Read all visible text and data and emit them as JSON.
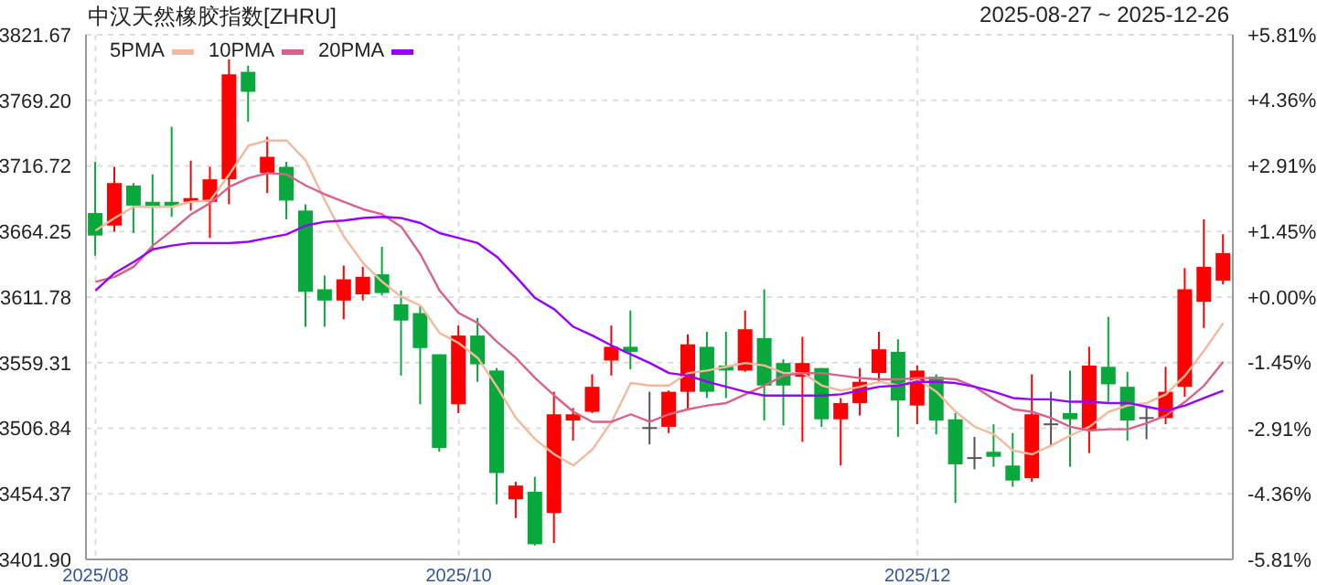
{
  "chart_data": {
    "type": "candlestick",
    "title": "中汉天然橡胶指数[ZHRU]",
    "subtitle": "2025-08-27 ~ 2025-12-26",
    "categories": [
      "2025/08",
      null,
      null,
      null,
      null,
      null,
      null,
      null,
      null,
      null,
      null,
      null,
      null,
      null,
      null,
      null,
      null,
      null,
      null,
      "2025/10",
      null,
      null,
      null,
      null,
      null,
      null,
      null,
      null,
      null,
      null,
      null,
      null,
      null,
      null,
      null,
      null,
      null,
      null,
      null,
      null,
      null,
      null,
      null,
      "2025/12",
      null,
      null,
      null,
      null,
      null,
      null,
      null,
      null,
      null,
      null,
      null,
      null,
      null,
      null,
      null,
      null
    ],
    "ohlc": [
      [
        3679,
        3720,
        3645,
        3661
      ],
      [
        3669,
        3716,
        3664,
        3703
      ],
      [
        3701,
        3703,
        3663,
        3685
      ],
      [
        3688,
        3710,
        3650,
        3684
      ],
      [
        3688,
        3748,
        3676,
        3685
      ],
      [
        3688,
        3721,
        3681,
        3691
      ],
      [
        3688,
        3716,
        3659,
        3706
      ],
      [
        3706,
        3802,
        3686,
        3790
      ],
      [
        3792,
        3797,
        3752,
        3776
      ],
      [
        3711,
        3740,
        3695,
        3724
      ],
      [
        3716,
        3720,
        3674,
        3689
      ],
      [
        3681,
        3686,
        3588,
        3616
      ],
      [
        3618,
        3629,
        3588,
        3609
      ],
      [
        3609,
        3637,
        3594,
        3626
      ],
      [
        3614,
        3636,
        3609,
        3628
      ],
      [
        3630,
        3652,
        3613,
        3615
      ],
      [
        3606,
        3617,
        3549,
        3593
      ],
      [
        3599,
        3605,
        3526,
        3571
      ],
      [
        3566,
        3566,
        3488,
        3491
      ],
      [
        3526,
        3589,
        3519,
        3581
      ],
      [
        3581,
        3595,
        3544,
        3558
      ],
      [
        3553,
        3555,
        3446,
        3471
      ],
      [
        3450,
        3464,
        3435,
        3461
      ],
      [
        3456,
        3468,
        3413,
        3414
      ],
      [
        3439,
        3536,
        3415,
        3518
      ],
      [
        3513,
        3523,
        3497,
        3518
      ],
      [
        3520,
        3550,
        3519,
        3540
      ],
      [
        3561,
        3589,
        3549,
        3572
      ],
      [
        3572,
        3601,
        3554,
        3568
      ],
      [
        3507,
        3536,
        3494,
        3507
      ],
      [
        3508,
        3537,
        3503,
        3536
      ],
      [
        3536,
        3582,
        3521,
        3574
      ],
      [
        3572,
        3584,
        3531,
        3536
      ],
      [
        3557,
        3584,
        3531,
        3553
      ],
      [
        3553,
        3601,
        3552,
        3586
      ],
      [
        3579,
        3618,
        3513,
        3541
      ],
      [
        3559,
        3562,
        3509,
        3541
      ],
      [
        3548,
        3580,
        3496,
        3559
      ],
      [
        3555,
        3555,
        3508,
        3514
      ],
      [
        3514,
        3531,
        3477,
        3527
      ],
      [
        3527,
        3555,
        3517,
        3544
      ],
      [
        3551,
        3584,
        3543,
        3570
      ],
      [
        3568,
        3578,
        3500,
        3529
      ],
      [
        3525,
        3557,
        3510,
        3553
      ],
      [
        3548,
        3550,
        3502,
        3513
      ],
      [
        3514,
        3519,
        3447,
        3478
      ],
      [
        3483,
        3500,
        3474,
        3483
      ],
      [
        3488,
        3510,
        3476,
        3484
      ],
      [
        3477,
        3503,
        3460,
        3465
      ],
      [
        3467,
        3550,
        3464,
        3518
      ],
      [
        3510,
        3536,
        3492,
        3510
      ],
      [
        3519,
        3553,
        3476,
        3514
      ],
      [
        3505,
        3572,
        3487,
        3557
      ],
      [
        3556,
        3596,
        3528,
        3542
      ],
      [
        3540,
        3552,
        3497,
        3513
      ],
      [
        3515,
        3524,
        3498,
        3515
      ],
      [
        3515,
        3556,
        3510,
        3536
      ],
      [
        3540,
        3635,
        3532,
        3618
      ],
      [
        3608,
        3674,
        3587,
        3636
      ],
      [
        3625,
        3662,
        3622,
        3647
      ]
    ],
    "colors": [
      "#08a83c",
      "#ff0000",
      "#08a83c",
      "#08a83c",
      "#08a83c",
      "#ff0000",
      "#ff0000",
      "#ff0000",
      "#08a83c",
      "#ff0000",
      "#08a83c",
      "#08a83c",
      "#08a83c",
      "#ff0000",
      "#ff0000",
      "#08a83c",
      "#08a83c",
      "#08a83c",
      "#08a83c",
      "#ff0000",
      "#08a83c",
      "#08a83c",
      "#ff0000",
      "#08a83c",
      "#ff0000",
      "#ff0000",
      "#ff0000",
      "#ff0000",
      "#08a83c",
      "#555555",
      "#ff0000",
      "#ff0000",
      "#08a83c",
      "#08a83c",
      "#ff0000",
      "#08a83c",
      "#08a83c",
      "#ff0000",
      "#08a83c",
      "#ff0000",
      "#ff0000",
      "#ff0000",
      "#08a83c",
      "#ff0000",
      "#08a83c",
      "#08a83c",
      "#555555",
      "#08a83c",
      "#08a83c",
      "#ff0000",
      "#555555",
      "#08a83c",
      "#ff0000",
      "#08a83c",
      "#08a83c",
      "#555555",
      "#ff0000",
      "#ff0000",
      "#ff0000",
      "#ff0000"
    ],
    "series": [
      {
        "name": "5PMA",
        "type": "line",
        "color": "#f4b99c",
        "values": [
          3665,
          3675,
          3684,
          3684,
          3684,
          3688,
          3689,
          3710,
          3733,
          3737,
          3737,
          3721,
          3689,
          3660,
          3639,
          3624,
          3612,
          3605,
          3583,
          3575,
          3563,
          3540,
          3515,
          3498,
          3486,
          3477,
          3490,
          3512,
          3543,
          3541,
          3541,
          3551,
          3553,
          3556,
          3559,
          3557,
          3551,
          3551,
          3541,
          3537,
          3540,
          3544,
          3541,
          3546,
          3536,
          3520,
          3508,
          3502,
          3489,
          3486,
          3493,
          3501,
          3508,
          3520,
          3525,
          3527,
          3534,
          3549,
          3569,
          3591
        ]
      },
      {
        "name": "10PMA",
        "type": "line",
        "color": "#d8628a",
        "values": [
          3624,
          3628,
          3636,
          3653,
          3665,
          3678,
          3687,
          3700,
          3707,
          3711,
          3710,
          3701,
          3694,
          3688,
          3682,
          3678,
          3668,
          3646,
          3617,
          3599,
          3591,
          3576,
          3563,
          3547,
          3533,
          3520,
          3512,
          3512,
          3518,
          3512,
          3518,
          3522,
          3525,
          3527,
          3534,
          3541,
          3549,
          3551,
          3551,
          3549,
          3547,
          3546,
          3546,
          3547,
          3547,
          3546,
          3540,
          3530,
          3522,
          3520,
          3515,
          3508,
          3505,
          3506,
          3506,
          3511,
          3517,
          3528,
          3541,
          3560
        ]
      },
      {
        "name": "20PMA",
        "type": "line",
        "color": "#9900ff",
        "values": [
          3617,
          3631,
          3640,
          3650,
          3653,
          3655,
          3655,
          3655,
          3656,
          3659,
          3662,
          3669,
          3672,
          3673,
          3675,
          3676,
          3675,
          3671,
          3663,
          3659,
          3655,
          3644,
          3628,
          3611,
          3602,
          3588,
          3581,
          3573,
          3566,
          3559,
          3551,
          3549,
          3544,
          3540,
          3536,
          3533,
          3533,
          3533,
          3533,
          3534,
          3537,
          3540,
          3541,
          3544,
          3544,
          3543,
          3540,
          3536,
          3531,
          3530,
          3530,
          3528,
          3528,
          3527,
          3527,
          3524,
          3521,
          3525,
          3531,
          3537
        ]
      }
    ],
    "ylim": [
      3401.9,
      3821.67
    ],
    "yticks": [
      {
        "value": 3401.9,
        "label": "3401.90"
      },
      3454.37,
      3506.84,
      3559.31,
      3611.78,
      3664.25,
      3716.72,
      {
        "value": 3769.2,
        "label": "3769.20"
      },
      3821.67
    ],
    "y2lim": [
      -5.81,
      5.81
    ],
    "y2ticks": [
      {
        "value": 5.81,
        "label": "+5.81%"
      },
      {
        "value": 4.36,
        "label": "+4.36%"
      },
      {
        "value": 2.91,
        "label": "+2.91%"
      },
      {
        "value": 1.45,
        "label": "+1.45%"
      },
      {
        "value": 0,
        "label": "+0.00%"
      },
      {
        "value": -1.45,
        "label": "-1.45%"
      },
      {
        "value": -2.91,
        "label": "-2.91%"
      },
      {
        "value": -4.36,
        "label": "-4.36%"
      },
      {
        "value": -5.81,
        "label": "-5.81%"
      }
    ],
    "grid": true,
    "legend": "top left"
  }
}
